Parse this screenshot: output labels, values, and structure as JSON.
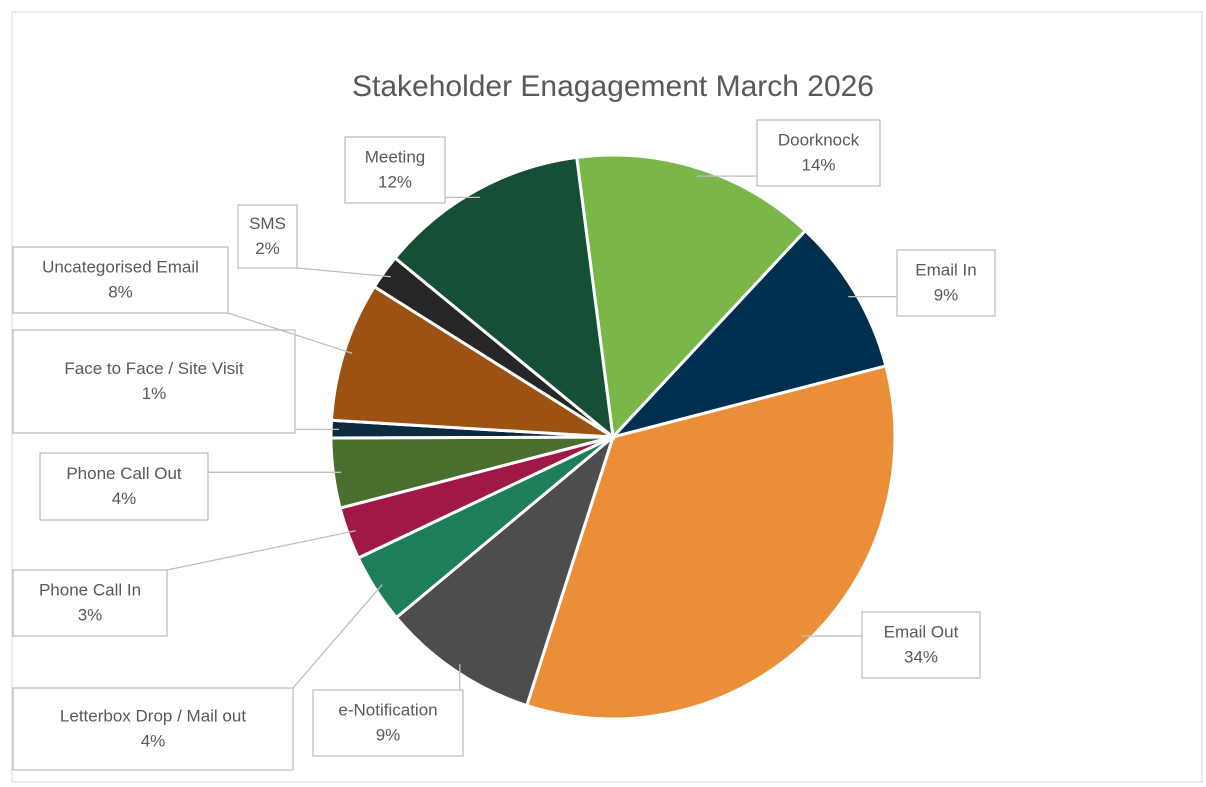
{
  "chart_data": {
    "type": "pie",
    "title": "Stakeholder Enagagement March 2026",
    "categories": [
      "Doorknock",
      "Email In",
      "Email Out",
      "e-Notification",
      "Letterbox Drop / Mail out",
      "Phone Call In",
      "Phone Call Out",
      "Face to Face / Site Visit",
      "Uncategorised Email",
      "SMS",
      "Meeting"
    ],
    "values": [
      14,
      9,
      34,
      9,
      4,
      3,
      4,
      1,
      8,
      2,
      12
    ],
    "value_labels": [
      "14%",
      "9%",
      "34%",
      "9%",
      "4%",
      "3%",
      "4%",
      "1%",
      "8%",
      "2%",
      "12%"
    ],
    "colors": [
      "#7ab648",
      "#003050",
      "#ea8f38",
      "#4d4d4d",
      "#1e7e58",
      "#a01845",
      "#4a6e2e",
      "#0b2a3d",
      "#9c5212",
      "#262626",
      "#154f35"
    ]
  }
}
